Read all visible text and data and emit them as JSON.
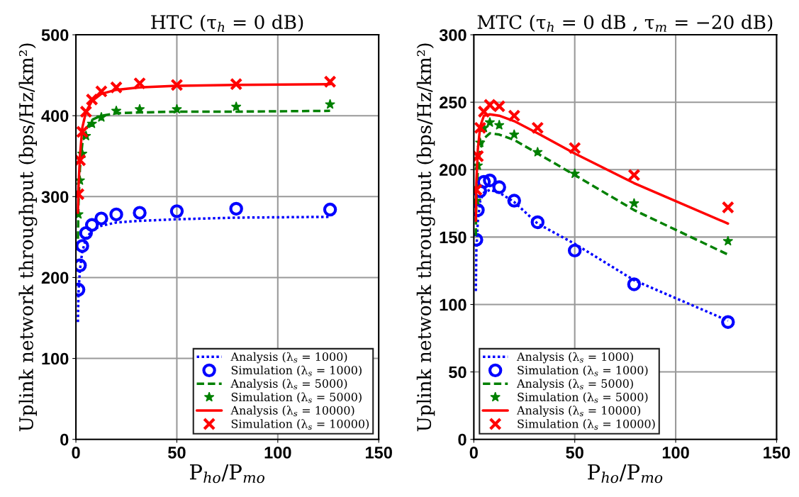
{
  "chart_data": [
    {
      "type": "line",
      "title": "HTC (τ$_{h}$ = 0 dB)",
      "xlabel": "P$_{ho}$/P$_{mo}$",
      "ylabel": "Uplink network throughput (bps/Hz/km²)",
      "xlim": [
        0,
        150
      ],
      "xticks": [
        0,
        50,
        100,
        150
      ],
      "ylim": [
        0,
        500
      ],
      "yticks": [
        0,
        100,
        200,
        300,
        400,
        500
      ],
      "grid": true,
      "legend": "bottom right",
      "series": [
        {
          "name": "Analysis (λ$_{s}$ = 1000)",
          "line_style": "dotted",
          "marker": "none",
          "color": "#0000ff",
          "x": [
            1,
            1.26,
            2,
            3.16,
            5,
            7.94,
            12.6,
            20,
            31.6,
            50,
            79.4,
            125.9
          ],
          "values": [
            145,
            180,
            210,
            232,
            248,
            258,
            264,
            268,
            270,
            272,
            274,
            275
          ]
        },
        {
          "name": "Simulation (λ$_{s}$ = 1000)",
          "type": "scatter",
          "marker": "circle",
          "color": "#0000ff",
          "x": [
            1.26,
            2,
            3.16,
            5,
            7.94,
            12.6,
            20,
            31.6,
            50,
            79.4,
            125.9
          ],
          "values": [
            185,
            215,
            239,
            255,
            265,
            273,
            278,
            280,
            282,
            285,
            284
          ]
        },
        {
          "name": "Analysis (λ$_{s}$ = 5000)",
          "type": "line",
          "line_style": "dashed",
          "marker": "none",
          "color": "#008000",
          "x": [
            1,
            1.26,
            2,
            3.16,
            5,
            7.94,
            12.6,
            20,
            31.6,
            50,
            79.4,
            125.9
          ],
          "values": [
            248,
            290,
            335,
            365,
            383,
            395,
            400,
            403,
            404,
            405,
            405,
            406
          ]
        },
        {
          "name": "Simulation (λ$_{s}$ = 5000)",
          "type": "scatter",
          "marker": "star",
          "color": "#008000",
          "x": [
            1.26,
            2,
            3.16,
            5,
            7.94,
            12.6,
            20,
            31.6,
            50,
            79.4,
            125.9
          ],
          "values": [
            278,
            320,
            353,
            375,
            390,
            398,
            406,
            408,
            408,
            411,
            414
          ]
        },
        {
          "name": "Analysis (λ$_{s}$ = 10000)",
          "type": "line",
          "line_style": "solid",
          "marker": "none",
          "color": "#ff0000",
          "x": [
            1,
            1.26,
            2,
            3.16,
            5,
            7.94,
            12.6,
            20,
            31.6,
            50,
            79.4,
            125.9
          ],
          "values": [
            280,
            310,
            350,
            385,
            405,
            418,
            427,
            432,
            435,
            437,
            438,
            439
          ]
        },
        {
          "name": "Simulation (λ$_{s}$ = 10000)",
          "type": "scatter",
          "marker": "cross",
          "color": "#ff0000",
          "x": [
            1.26,
            2,
            3.16,
            5,
            7.94,
            12.6,
            20,
            31.6,
            50,
            79.4,
            125.9
          ],
          "values": [
            303,
            345,
            380,
            405,
            420,
            430,
            435,
            440,
            438,
            439,
            442
          ]
        }
      ]
    },
    {
      "type": "line",
      "title": "MTC (τ$_{h}$ = 0 dB , τ$_{m}$ = −20 dB)",
      "xlabel": "P$_{ho}$/P$_{mo}$",
      "ylabel": "Uplink network throughput (bps/Hz/km²)",
      "xlim": [
        0,
        150
      ],
      "xticks": [
        0,
        50,
        100,
        150
      ],
      "ylim": [
        0,
        300
      ],
      "yticks": [
        0,
        50,
        100,
        150,
        200,
        250,
        300
      ],
      "grid": true,
      "legend": "bottom left",
      "series": [
        {
          "name": "Analysis (λ$_{s}$ = 1000)",
          "line_style": "dotted",
          "marker": "none",
          "color": "#0000ff",
          "x": [
            1,
            1.26,
            2,
            3.16,
            5,
            7.94,
            12.6,
            20,
            31.6,
            50,
            79.4,
            125.9
          ],
          "values": [
            110,
            140,
            162,
            177,
            183,
            185,
            183,
            176,
            160,
            145,
            118,
            88
          ]
        },
        {
          "name": "Simulation (λ$_{s}$ = 1000)",
          "type": "scatter",
          "marker": "circle",
          "color": "#0000ff",
          "x": [
            1.26,
            2,
            3.16,
            5,
            7.94,
            12.6,
            20,
            31.6,
            50,
            79.4,
            125.9
          ],
          "values": [
            148,
            170,
            184,
            191,
            192,
            187,
            177,
            161,
            140,
            115,
            87
          ]
        },
        {
          "name": "Analysis (λ$_{s}$ = 5000)",
          "type": "line",
          "line_style": "dashed",
          "marker": "none",
          "color": "#008000",
          "x": [
            1,
            1.26,
            2,
            3.16,
            5,
            7.94,
            12.6,
            20,
            31.6,
            50,
            79.4,
            125.9
          ],
          "values": [
            151,
            180,
            200,
            215,
            223,
            227,
            226,
            222,
            212,
            196,
            170,
            137
          ]
        },
        {
          "name": "Simulation (λ$_{s}$ = 5000)",
          "type": "scatter",
          "marker": "star",
          "color": "#008000",
          "x": [
            1.26,
            2,
            3.16,
            5,
            7.94,
            12.6,
            20,
            31.6,
            50,
            79.4,
            125.9
          ],
          "values": [
            177,
            203,
            220,
            231,
            235,
            233,
            226,
            213,
            197,
            175,
            147
          ]
        },
        {
          "name": "Analysis (λ$_{s}$ = 10000)",
          "type": "line",
          "line_style": "solid",
          "marker": "none",
          "color": "#ff0000",
          "x": [
            1,
            1.26,
            2,
            3.16,
            5,
            7.94,
            12.6,
            20,
            31.6,
            50,
            79.4,
            125.9
          ],
          "values": [
            162,
            190,
            215,
            232,
            240,
            241,
            240,
            236,
            227,
            212,
            190,
            160
          ]
        },
        {
          "name": "Simulation (λ$_{s}$ = 10000)",
          "type": "scatter",
          "marker": "cross",
          "color": "#ff0000",
          "x": [
            1.26,
            2,
            3.16,
            5,
            7.94,
            12.6,
            20,
            31.6,
            50,
            79.4,
            125.9
          ],
          "values": [
            185,
            210,
            231,
            243,
            248,
            247,
            240,
            231,
            216,
            196,
            172
          ]
        }
      ]
    }
  ]
}
